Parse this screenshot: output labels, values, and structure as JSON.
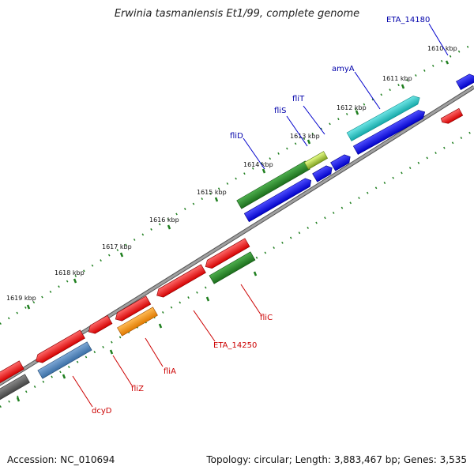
{
  "title": "Erwinia tasmaniensis Et1/99, complete genome",
  "footer": {
    "accession": "Accession: NC_010694",
    "summary": "Topology: circular; Length: 3,883,467 bp; Genes: 3,535"
  },
  "colors": {
    "backbone": "#8a8a8a",
    "ticks": "#1f7f1f",
    "label_plus_strand": "#0000aa",
    "label_minus_strand": "#cc0000"
  },
  "tick_labels": [
    "1610 kbp",
    "1611 kbp",
    "1612 kbp",
    "1613 kbp",
    "1614 kbp",
    "1615 kbp",
    "1616 kbp",
    "1617 kbp",
    "1618 kbp",
    "1619 kbp"
  ],
  "gene_labels_upper": [
    "ETA_14180",
    "amyA",
    "fliT",
    "fliS",
    "fliD"
  ],
  "gene_labels_lower": [
    "fliC",
    "ETA_14250",
    "fliA",
    "fliZ",
    "dcyD"
  ]
}
